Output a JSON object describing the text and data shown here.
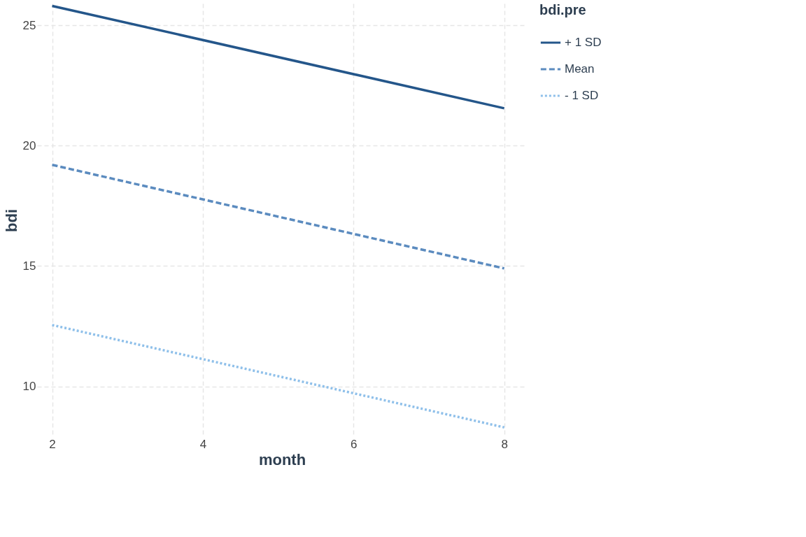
{
  "chart_data": {
    "type": "line",
    "xlabel": "month",
    "ylabel": "bdi",
    "legend_title": "bdi.pre",
    "x": [
      2,
      8
    ],
    "series": [
      {
        "name": "+ 1 SD",
        "color": "#24568a",
        "line_style": "solid",
        "values": [
          25.8,
          21.55
        ]
      },
      {
        "name": "Mean",
        "color": "#5b8bbf",
        "line_style": "dashed",
        "values": [
          19.2,
          14.9
        ]
      },
      {
        "name": "- 1 SD",
        "color": "#8fc0ea",
        "line_style": "dotted",
        "values": [
          12.55,
          8.3
        ]
      }
    ],
    "xlim": [
      1.8,
      8.3
    ],
    "ylim": [
      7.9,
      25.9
    ],
    "xticks": [
      2,
      4,
      6,
      8
    ],
    "yticks": [
      10,
      15,
      20,
      25
    ],
    "grid": true,
    "legend": "right",
    "marker": "none"
  }
}
